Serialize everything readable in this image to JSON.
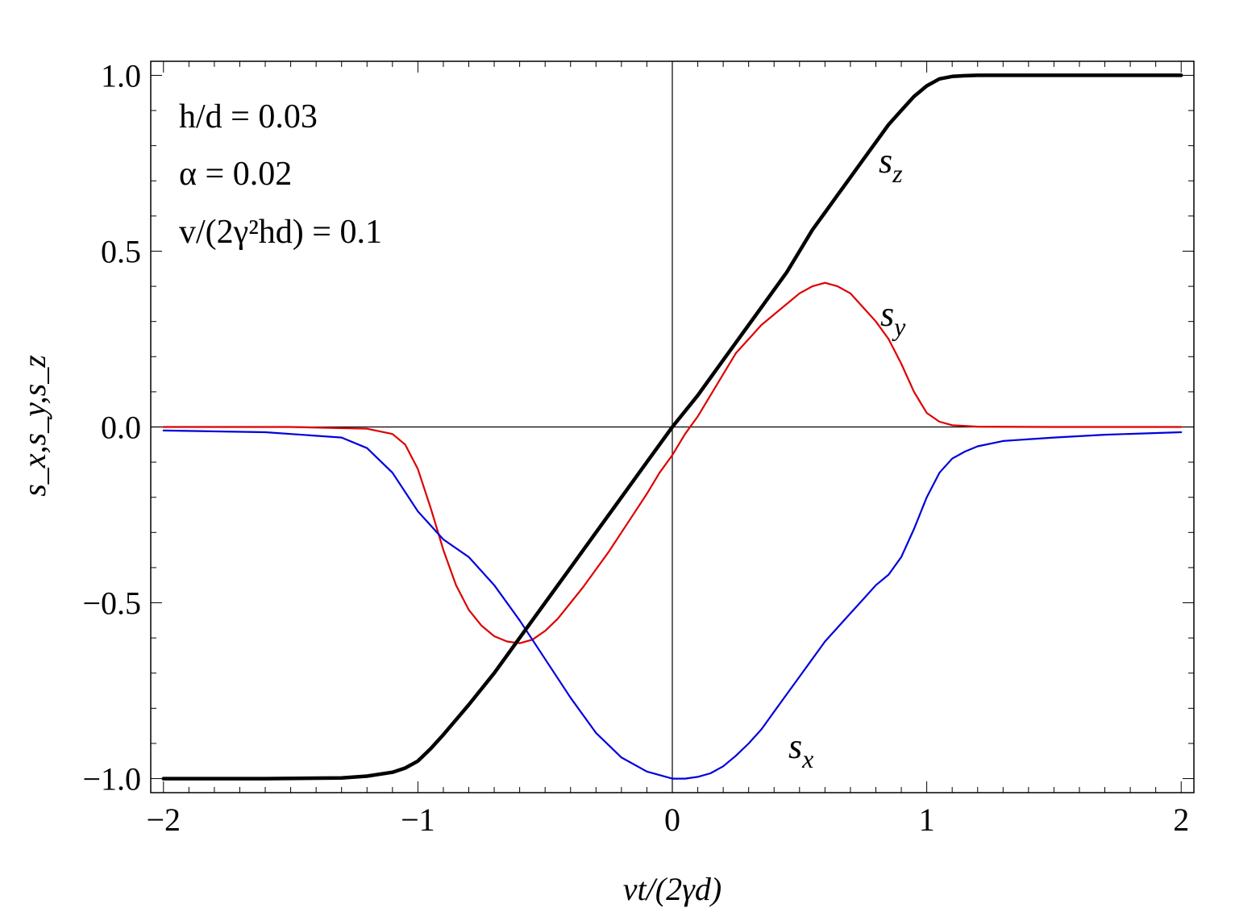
{
  "chart_data": {
    "type": "line",
    "title": "",
    "xlabel": "vt/(2γd)",
    "ylabel": "s_x,s_y,s_z",
    "xlim": [
      -2.05,
      2.05
    ],
    "ylim": [
      -1.04,
      1.04
    ],
    "x_ticks": [
      -2,
      -1,
      0,
      1,
      2
    ],
    "x_tick_labels": [
      "−2",
      "−1",
      "0",
      "1",
      "2"
    ],
    "y_ticks": [
      -1.0,
      -0.5,
      0.0,
      0.5,
      1.0
    ],
    "y_tick_labels": [
      "−1.0",
      "−0.5",
      "0.0",
      "0.5",
      "1.0"
    ],
    "annotations": [
      "h/d = 0.03",
      "α = 0.02",
      "v/(2γ²hd) = 0.1"
    ],
    "series": [
      {
        "name": "s_z",
        "label": "s",
        "subscript": "z",
        "color": "#000000",
        "x": [
          -2.0,
          -1.6,
          -1.3,
          -1.2,
          -1.1,
          -1.05,
          -1.0,
          -0.95,
          -0.9,
          -0.8,
          -0.7,
          -0.6,
          -0.5,
          -0.4,
          -0.3,
          -0.2,
          -0.1,
          0.0,
          0.1,
          0.15,
          0.2,
          0.25,
          0.3,
          0.35,
          0.4,
          0.45,
          0.5,
          0.55,
          0.6,
          0.65,
          0.7,
          0.75,
          0.8,
          0.85,
          0.9,
          0.95,
          1.0,
          1.05,
          1.1,
          1.15,
          1.2,
          1.4,
          1.7,
          2.0
        ],
        "values": [
          -1.0,
          -1.0,
          -0.998,
          -0.993,
          -0.982,
          -0.97,
          -0.95,
          -0.915,
          -0.875,
          -0.79,
          -0.7,
          -0.6,
          -0.5,
          -0.4,
          -0.3,
          -0.2,
          -0.1,
          0.0,
          0.09,
          0.14,
          0.19,
          0.24,
          0.29,
          0.34,
          0.39,
          0.44,
          0.5,
          0.56,
          0.61,
          0.66,
          0.71,
          0.76,
          0.81,
          0.86,
          0.9,
          0.94,
          0.97,
          0.99,
          0.997,
          0.999,
          1.0,
          1.0,
          1.0,
          1.0
        ]
      },
      {
        "name": "s_y",
        "label": "s",
        "subscript": "y",
        "color": "#dd0000",
        "x": [
          -2.0,
          -1.5,
          -1.2,
          -1.1,
          -1.05,
          -1.0,
          -0.95,
          -0.9,
          -0.85,
          -0.8,
          -0.75,
          -0.7,
          -0.65,
          -0.6,
          -0.55,
          -0.5,
          -0.45,
          -0.4,
          -0.35,
          -0.3,
          -0.25,
          -0.2,
          -0.15,
          -0.1,
          -0.05,
          0.0,
          0.05,
          0.1,
          0.15,
          0.2,
          0.25,
          0.3,
          0.35,
          0.4,
          0.45,
          0.5,
          0.55,
          0.6,
          0.65,
          0.7,
          0.75,
          0.8,
          0.85,
          0.9,
          0.95,
          1.0,
          1.05,
          1.1,
          1.2,
          1.5,
          2.0
        ],
        "values": [
          0.0,
          0.0,
          -0.005,
          -0.02,
          -0.05,
          -0.12,
          -0.23,
          -0.35,
          -0.45,
          -0.52,
          -0.565,
          -0.595,
          -0.61,
          -0.615,
          -0.605,
          -0.58,
          -0.545,
          -0.5,
          -0.455,
          -0.405,
          -0.355,
          -0.3,
          -0.245,
          -0.19,
          -0.13,
          -0.08,
          -0.02,
          0.03,
          0.09,
          0.15,
          0.21,
          0.25,
          0.29,
          0.32,
          0.35,
          0.38,
          0.4,
          0.41,
          0.4,
          0.38,
          0.34,
          0.3,
          0.25,
          0.18,
          0.1,
          0.04,
          0.015,
          0.005,
          0.001,
          0.0,
          0.0
        ]
      },
      {
        "name": "s_x",
        "label": "s",
        "subscript": "x",
        "color": "#0000dd",
        "x": [
          -2.0,
          -1.6,
          -1.3,
          -1.2,
          -1.1,
          -1.0,
          -0.9,
          -0.8,
          -0.7,
          -0.6,
          -0.5,
          -0.4,
          -0.3,
          -0.2,
          -0.1,
          0.0,
          0.05,
          0.1,
          0.15,
          0.2,
          0.25,
          0.3,
          0.35,
          0.4,
          0.45,
          0.5,
          0.55,
          0.6,
          0.65,
          0.7,
          0.75,
          0.8,
          0.85,
          0.9,
          0.95,
          1.0,
          1.05,
          1.1,
          1.15,
          1.2,
          1.3,
          1.5,
          1.7,
          2.0
        ],
        "values": [
          -0.01,
          -0.015,
          -0.03,
          -0.06,
          -0.13,
          -0.24,
          -0.32,
          -0.37,
          -0.45,
          -0.55,
          -0.66,
          -0.77,
          -0.87,
          -0.94,
          -0.98,
          -1.0,
          -1.0,
          -0.995,
          -0.985,
          -0.965,
          -0.935,
          -0.9,
          -0.86,
          -0.81,
          -0.76,
          -0.71,
          -0.66,
          -0.61,
          -0.57,
          -0.53,
          -0.49,
          -0.45,
          -0.42,
          -0.37,
          -0.29,
          -0.2,
          -0.13,
          -0.09,
          -0.07,
          -0.055,
          -0.04,
          -0.03,
          -0.022,
          -0.015
        ]
      }
    ]
  }
}
